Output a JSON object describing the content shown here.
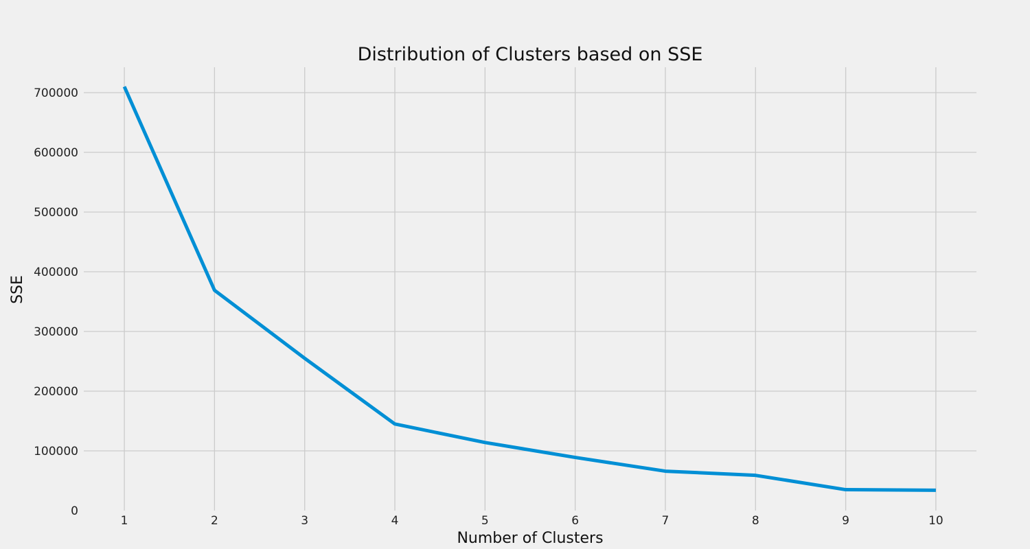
{
  "chart_data": {
    "type": "line",
    "title": "Distribution of Clusters based on SSE",
    "xlabel": "Number of Clusters",
    "ylabel": "SSE",
    "x": [
      1,
      2,
      3,
      4,
      5,
      6,
      7,
      8,
      9,
      10
    ],
    "series": [
      {
        "values": [
          710000,
          369000,
          255000,
          145000,
          114000,
          89000,
          66000,
          59000,
          35000,
          34000
        ],
        "color": "#008fd5"
      }
    ],
    "x_ticks": [
      1,
      2,
      3,
      4,
      5,
      6,
      7,
      8,
      9,
      10
    ],
    "y_ticks": [
      0,
      100000,
      200000,
      300000,
      400000,
      500000,
      600000,
      700000
    ],
    "xlim": [
      0.55,
      10.45
    ],
    "ylim": [
      0,
      700000
    ],
    "grid": true,
    "style": {
      "background": "#f0f0f0",
      "grid_color": "#cbcbcb"
    }
  }
}
